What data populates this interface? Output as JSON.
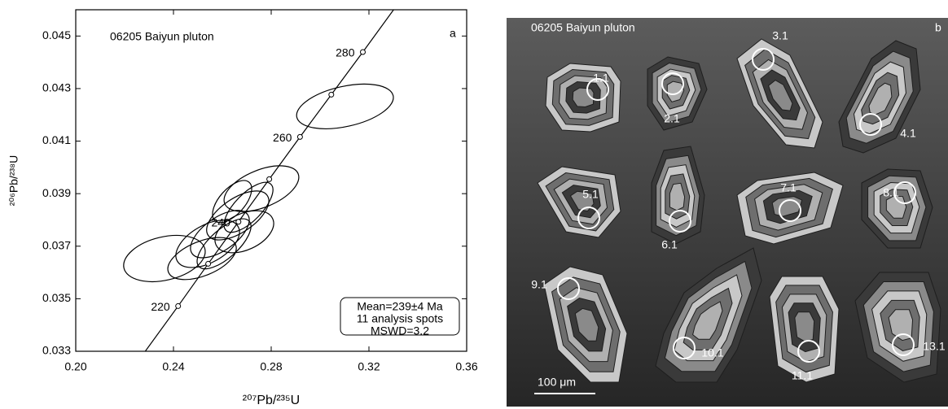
{
  "chart_data": {
    "type": "concordia",
    "title": "06205 Baiyun pluton",
    "panel_label": "a",
    "x_label": "²⁰⁷Pb/²³⁵U",
    "y_label": "²⁰⁶Pb/²³⁸U",
    "xlim": [
      0.2,
      0.36
    ],
    "ylim": [
      0.033,
      0.046
    ],
    "xticks": [
      {
        "value": 0.2,
        "label": "0.20"
      },
      0.24,
      0.28,
      0.32,
      0.36
    ],
    "yticks": [
      0.033,
      0.035,
      0.037,
      0.039,
      0.041,
      0.043,
      0.045
    ],
    "concordia": {
      "x": [
        0.2419,
        0.2542,
        0.2666,
        0.2792,
        0.2918,
        0.3046,
        0.3175
      ],
      "y": [
        0.03472,
        0.03633,
        0.03793,
        0.03955,
        0.04116,
        0.04277,
        0.04439
      ],
      "ages": [
        220,
        null,
        240,
        null,
        260,
        null,
        280
      ]
    },
    "ellipses": [
      {
        "x": 0.3102,
        "y": 0.04232,
        "x_err": 0.0198,
        "y_err": 0.00085,
        "rho": 0.4
      },
      {
        "x": 0.276,
        "y": 0.03919,
        "x_err": 0.0153,
        "y_err": 0.00087,
        "rho": 0.5
      },
      {
        "x": 0.2663,
        "y": 0.03817,
        "x_err": 0.0127,
        "y_err": 0.00093,
        "rho": 0.6
      },
      {
        "x": 0.2707,
        "y": 0.03848,
        "x_err": 0.01,
        "y_err": 0.00095,
        "rho": 0.7
      },
      {
        "x": 0.269,
        "y": 0.03755,
        "x_err": 0.012,
        "y_err": 0.0008,
        "rho": 0.4
      },
      {
        "x": 0.259,
        "y": 0.03746,
        "x_err": 0.012,
        "y_err": 0.0009,
        "rho": 0.6
      },
      {
        "x": 0.254,
        "y": 0.03709,
        "x_err": 0.013,
        "y_err": 0.0009,
        "rho": 0.5
      },
      {
        "x": 0.2517,
        "y": 0.03653,
        "x_err": 0.014,
        "y_err": 0.0008,
        "rho": 0.5
      },
      {
        "x": 0.2607,
        "y": 0.03709,
        "x_err": 0.011,
        "y_err": 0.00095,
        "rho": 0.7
      },
      {
        "x": 0.2363,
        "y": 0.03653,
        "x_err": 0.0167,
        "y_err": 0.00088,
        "rho": 0.3
      },
      {
        "x": 0.264,
        "y": 0.0387,
        "x_err": 0.008,
        "y_err": 0.0008,
        "rho": 0.6
      }
    ],
    "annotation": [
      "Mean=239±4 Ma",
      "11 analysis spots",
      "MSWD=3.2"
    ]
  },
  "image_panel": {
    "title": "06205 Baiyun pluton",
    "panel_label": "b",
    "spots": [
      "1.1",
      "2.1",
      "3.1",
      "4.1",
      "5.1",
      "6.1",
      "7.1",
      "8.1",
      "9.1",
      "10.1",
      "11.1",
      "13.1"
    ],
    "scale_bar": "100 μm"
  }
}
